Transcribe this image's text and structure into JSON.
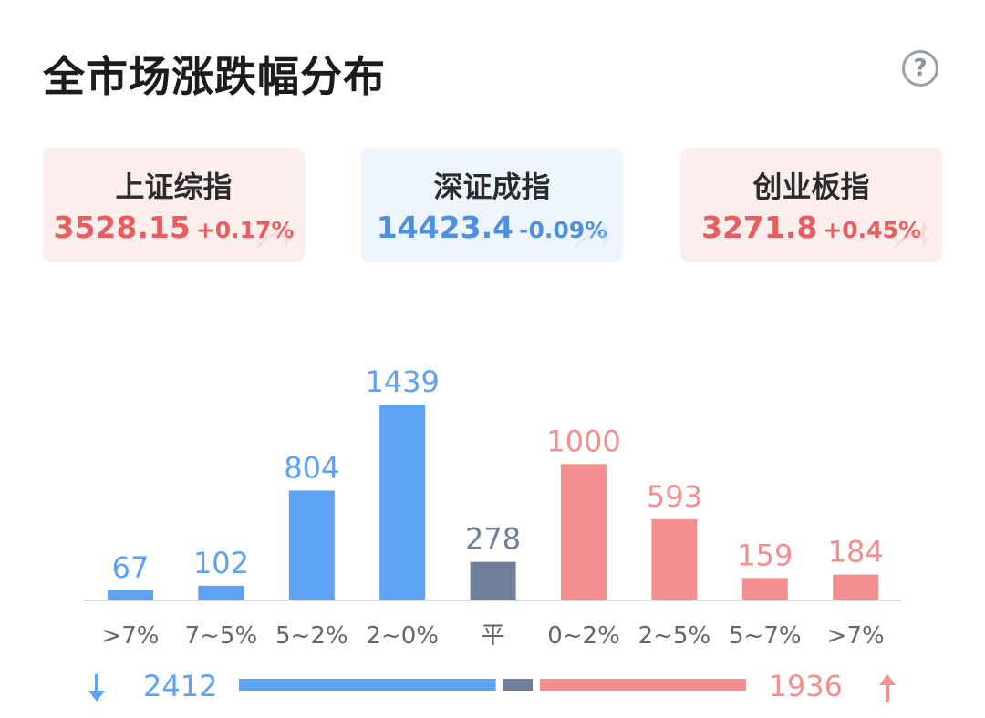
{
  "header": {
    "title": "全市场涨跌幅分布",
    "help_icon": "question-circle-icon",
    "help_glyph": "?"
  },
  "indices": [
    {
      "name": "上证综指",
      "price": "3528.15",
      "change": "+0.17%",
      "direction": "up"
    },
    {
      "name": "深证成指",
      "price": "14423.4",
      "change": "-0.09%",
      "direction": "down"
    },
    {
      "name": "创业板指",
      "price": "3271.8",
      "change": "+0.45%",
      "direction": "up"
    }
  ],
  "colors": {
    "down": "#5ea2f5",
    "flat": "#6f7f9a",
    "up": "#f58f8f",
    "down_text": "#4f8fe0",
    "up_text": "#e85d5d",
    "axis_label": "#666666",
    "baseline": "#dddddd"
  },
  "chart_data": {
    "type": "bar",
    "categories": [
      ">7%",
      "7~5%",
      "5~2%",
      "2~0%",
      "平",
      "0~2%",
      "2~5%",
      "5~7%",
      ">7%"
    ],
    "values": [
      67,
      102,
      804,
      1439,
      278,
      1000,
      593,
      159,
      184
    ],
    "groups": [
      "down",
      "down",
      "down",
      "down",
      "flat",
      "up",
      "up",
      "up",
      "up"
    ],
    "title": "",
    "xlabel": "",
    "ylabel": "",
    "ylim": [
      0,
      1439
    ],
    "grid": false
  },
  "summary": {
    "down_total": "2412",
    "up_total": "1936",
    "down_icon": "arrow-down-icon",
    "up_icon": "arrow-up-icon"
  }
}
